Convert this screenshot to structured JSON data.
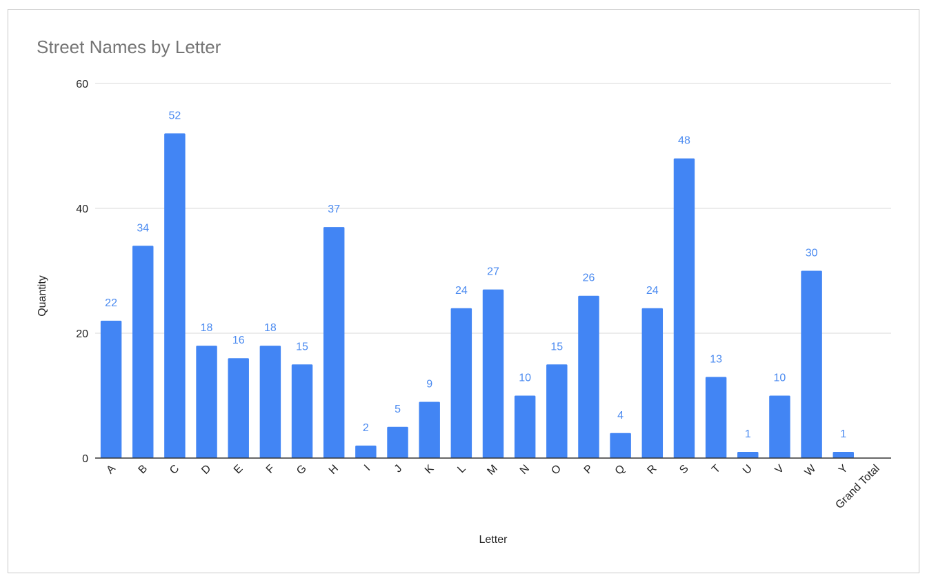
{
  "chart_data": {
    "type": "bar",
    "title": "Street Names by Letter",
    "xlabel": "Letter",
    "ylabel": "Quantity",
    "ylim": [
      0,
      60
    ],
    "yticks": [
      0,
      20,
      40,
      60
    ],
    "grid": true,
    "categories": [
      "A",
      "B",
      "C",
      "D",
      "E",
      "F",
      "G",
      "H",
      "I",
      "J",
      "K",
      "L",
      "M",
      "N",
      "O",
      "P",
      "Q",
      "R",
      "S",
      "T",
      "U",
      "V",
      "W",
      "Y",
      "Grand Total"
    ],
    "values": [
      22,
      34,
      52,
      18,
      16,
      18,
      15,
      37,
      2,
      5,
      9,
      24,
      27,
      10,
      15,
      26,
      4,
      24,
      48,
      13,
      1,
      10,
      30,
      1,
      null
    ],
    "colors": {
      "bar": "#4285f4",
      "data_label": "#4a8af0",
      "gridline": "#d9d9d9",
      "baseline": "#333333",
      "title": "#757575"
    }
  }
}
